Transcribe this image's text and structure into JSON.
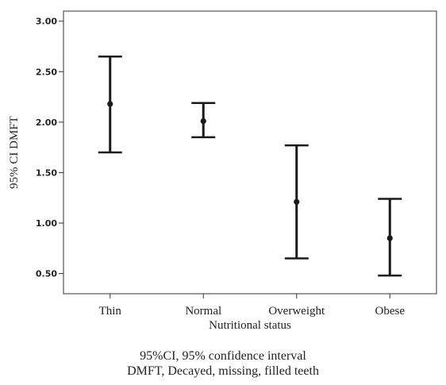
{
  "chart_data": {
    "type": "errorbar",
    "xlabel": "Nutritional status",
    "ylabel": "95% CI DMFT",
    "ylim": [
      0.3,
      3.1
    ],
    "yticks": [
      0.5,
      1.0,
      1.5,
      2.0,
      2.5,
      3.0
    ],
    "ytick_labels": [
      "0.50",
      "1.00",
      "1.50",
      "2.00",
      "2.50",
      "3.00"
    ],
    "grid": false,
    "legend": false,
    "categories": [
      "Thin",
      "Normal",
      "Overweight",
      "Obese"
    ],
    "series": [
      {
        "mean": [
          2.18,
          2.01,
          1.21,
          0.85
        ],
        "lower": [
          1.7,
          1.85,
          0.65,
          0.48
        ],
        "upper": [
          2.65,
          2.19,
          1.77,
          1.24
        ]
      }
    ],
    "notes": [
      "95%CI, 95% confidence interval",
      "DMFT, Decayed, missing, filled teeth"
    ]
  }
}
